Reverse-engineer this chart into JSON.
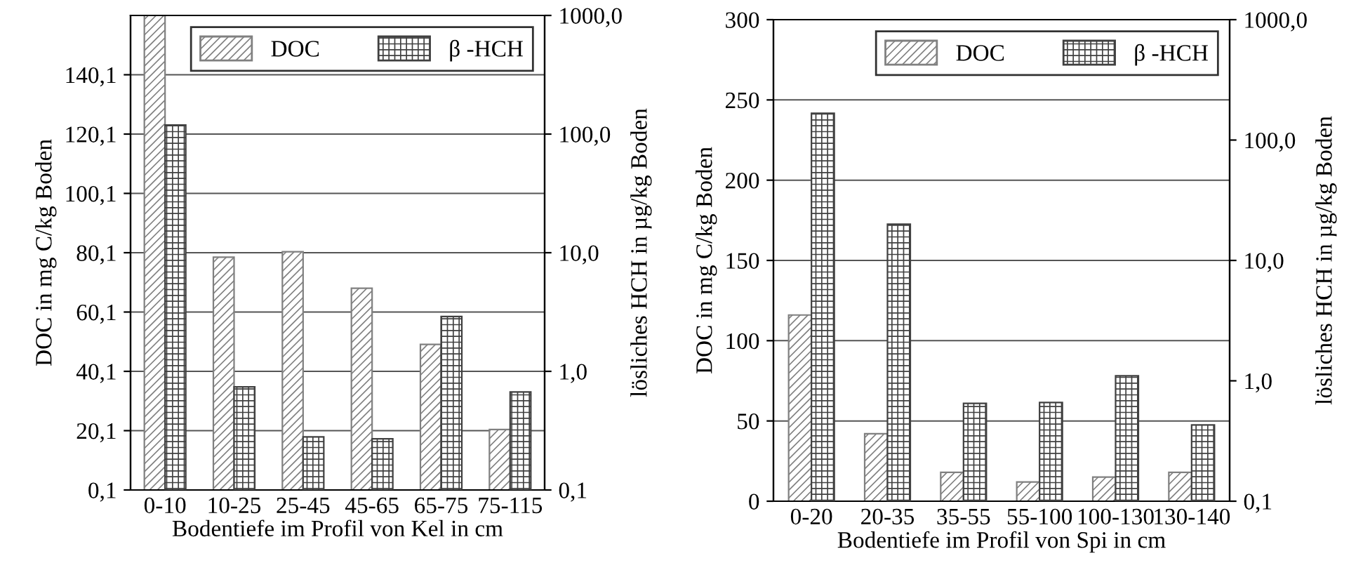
{
  "chart_data": [
    {
      "type": "bar",
      "xlabel": "Bodentiefe im Profil von Kel in cm",
      "ylabel": "DOC in mg C/kg Boden",
      "y2label": "lösliches HCH in µg/kg Boden",
      "categories": [
        "0-10",
        "10-25",
        "25-45",
        "45-65",
        "65-75",
        "75-115"
      ],
      "series": [
        {
          "name": "DOC",
          "color": "#808080",
          "values": [
            160.1,
            78.6,
            80.4,
            68.1,
            49.2,
            20.5
          ]
        },
        {
          "name": "β -HCH",
          "color": "#404040",
          "axis": "y2",
          "values": [
            119,
            0.74,
            0.28,
            0.27,
            2.9,
            0.67
          ]
        }
      ],
      "ylim": [
        0.1,
        160.1
      ],
      "yticks": [
        {
          "value": 0.1,
          "label": "0,1"
        },
        {
          "value": 20.1,
          "label": "20,1"
        },
        {
          "value": 40.1,
          "label": "40,1"
        },
        {
          "value": 60.1,
          "label": "60,1"
        },
        {
          "value": 80.1,
          "label": "80,1"
        },
        {
          "value": 100.1,
          "label": "100,1"
        },
        {
          "value": 120.1,
          "label": "120,1"
        },
        {
          "value": 140.1,
          "label": "140,1"
        }
      ],
      "y2lim": [
        0.1,
        1000
      ],
      "y2ticks": [
        {
          "value": 0.1,
          "label": "0,1"
        },
        {
          "value": 1,
          "label": "1,0"
        },
        {
          "value": 10,
          "label": "10,0"
        },
        {
          "value": 100,
          "label": "100,0"
        },
        {
          "value": 1000,
          "label": "1000,0"
        }
      ],
      "log": "y2",
      "grid": "y",
      "legend": "top right"
    },
    {
      "type": "bar",
      "xlabel": "Bodentiefe im Profil von Spi in cm",
      "ylabel": "DOC in mg C/kg Boden",
      "y2label": "lösliches HCH in µg/kg Boden",
      "categories": [
        "0-20",
        "20-35",
        "35-55",
        "55-100",
        "100-130",
        "130-140"
      ],
      "series": [
        {
          "name": "DOC",
          "color": "#808080",
          "values": [
            116,
            42,
            18,
            12,
            15,
            18
          ]
        },
        {
          "name": "β -HCH",
          "color": "#404040",
          "axis": "y2",
          "values": [
            167,
            20,
            0.65,
            0.66,
            1.1,
            0.43
          ]
        }
      ],
      "ylim": [
        0,
        300
      ],
      "yticks": [
        0,
        50,
        100,
        150,
        200,
        250,
        300
      ],
      "y2lim": [
        0.1,
        1000
      ],
      "y2ticks": [
        {
          "value": 0.1,
          "label": "0,1"
        },
        {
          "value": 1,
          "label": "1,0"
        },
        {
          "value": 10,
          "label": "10,0"
        },
        {
          "value": 100,
          "label": "100,0"
        },
        {
          "value": 1000,
          "label": "1000,0"
        }
      ],
      "log": "y2",
      "grid": "y",
      "legend": "top right"
    }
  ]
}
